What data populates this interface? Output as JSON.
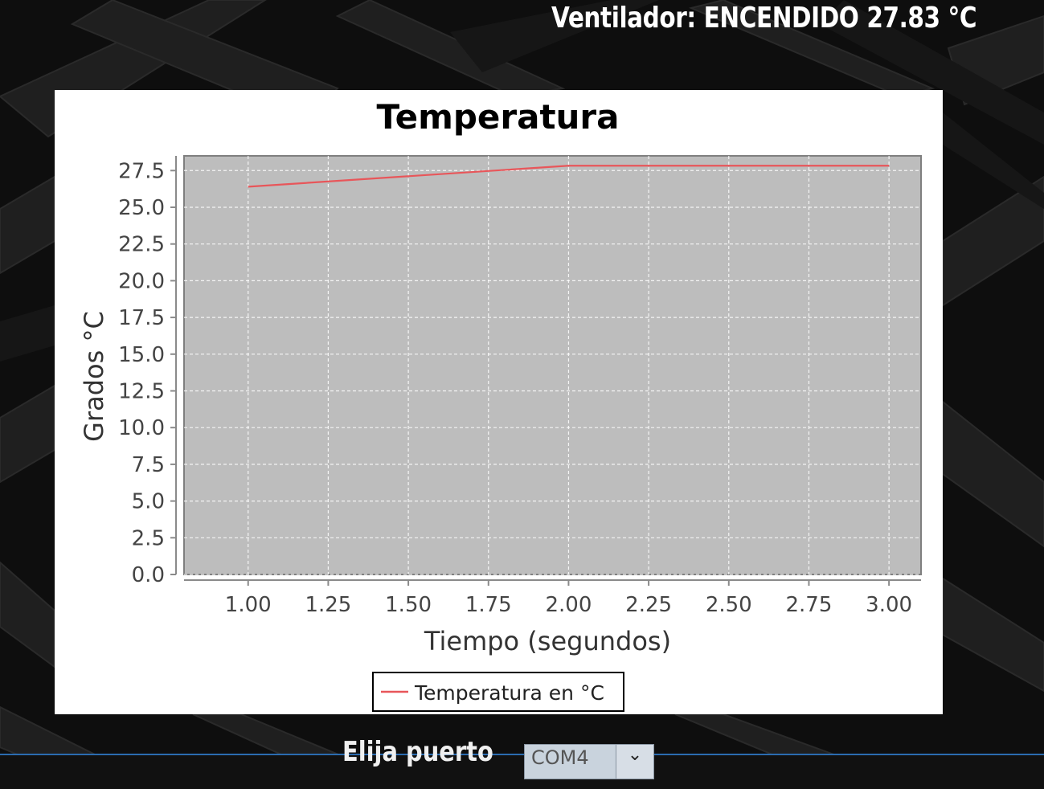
{
  "status": {
    "text": "Ventilador: ENCENDIDO  27.83 °C"
  },
  "chart_data": {
    "type": "line",
    "title": "Temperatura",
    "xlabel": "Tiempo (segundos)",
    "ylabel": "Grados °C",
    "xlim": [
      0.8,
      3.1
    ],
    "ylim": [
      0,
      28.5
    ],
    "x_ticks": [
      1.0,
      1.25,
      1.5,
      1.75,
      2.0,
      2.25,
      2.5,
      2.75,
      3.0
    ],
    "x_tick_labels": [
      "1.00",
      "1.25",
      "1.50",
      "1.75",
      "2.00",
      "2.25",
      "2.50",
      "2.75",
      "3.00"
    ],
    "y_ticks": [
      0,
      2.5,
      5,
      7.5,
      10,
      12.5,
      15,
      17.5,
      20,
      22.5,
      25,
      27.5
    ],
    "y_tick_labels": [
      "0.0",
      "2.5",
      "5.0",
      "7.5",
      "10.0",
      "12.5",
      "15.0",
      "17.5",
      "20.0",
      "22.5",
      "25.0",
      "27.5"
    ],
    "grid": true,
    "legend_position": "bottom-center",
    "series": [
      {
        "name": "Temperatura en °C",
        "color": "#e8565a",
        "x": [
          1,
          2,
          3
        ],
        "y": [
          26.4,
          27.83,
          27.83
        ]
      }
    ],
    "plot_background": "#bdbdbd"
  },
  "port": {
    "label": "Elija puerto",
    "selected": "COM4"
  }
}
